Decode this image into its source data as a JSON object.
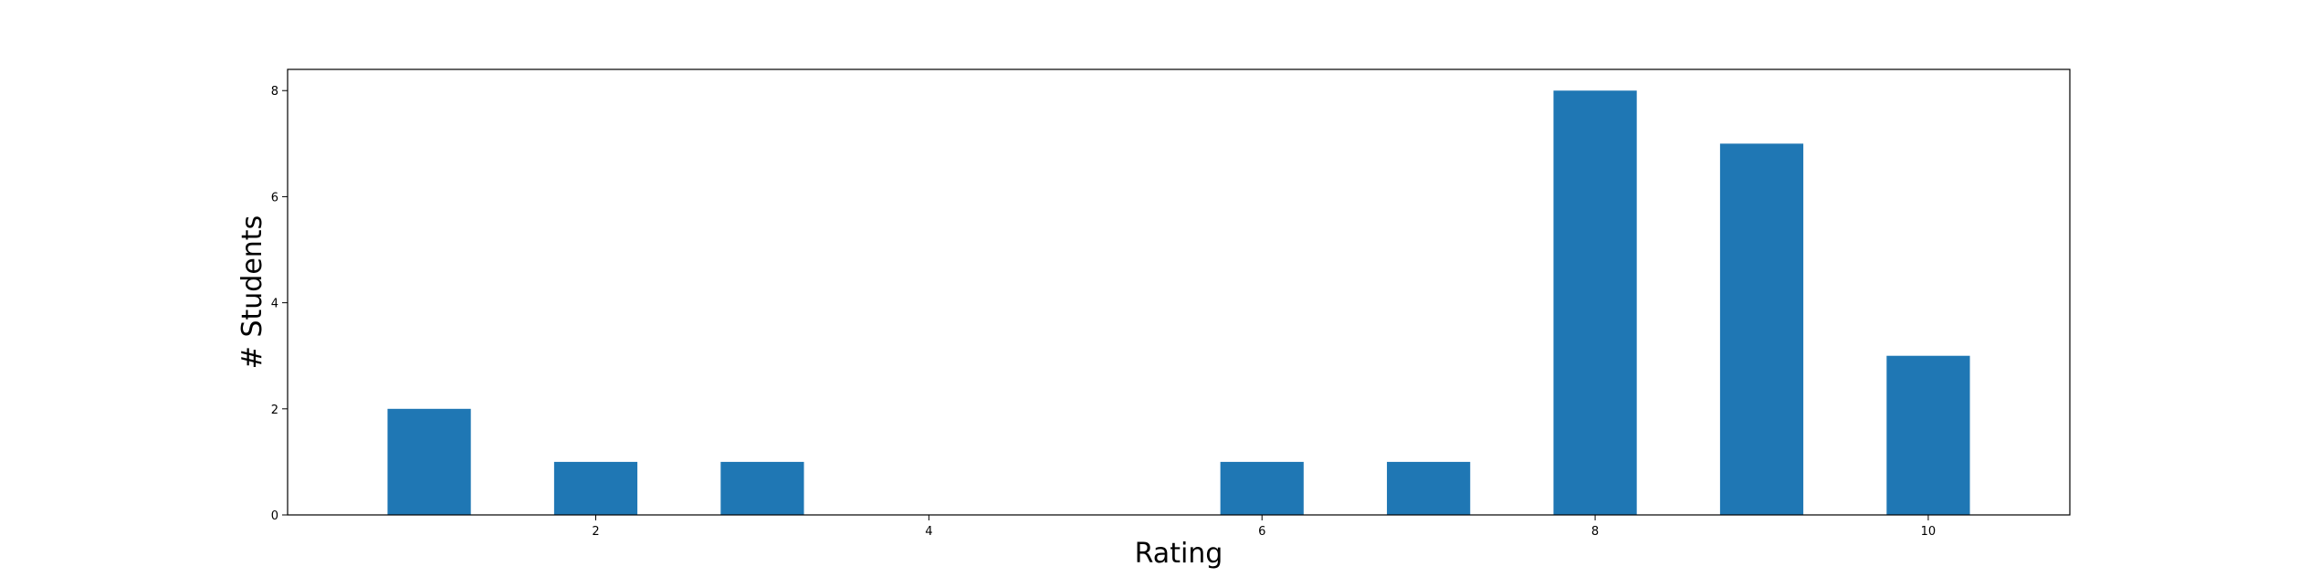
{
  "chart_data": {
    "type": "bar",
    "x": [
      1,
      2,
      3,
      6,
      7,
      8,
      9,
      10
    ],
    "values": [
      2,
      1,
      1,
      1,
      1,
      8,
      7,
      3
    ],
    "xlabel": "Rating",
    "ylabel": "# Students",
    "xlim": [
      0.15,
      10.85
    ],
    "ylim": [
      0,
      8.4
    ],
    "xticks": [
      2,
      4,
      6,
      8,
      10
    ],
    "yticks": [
      0,
      2,
      4,
      6,
      8
    ],
    "bar_width": 0.5,
    "grid": false,
    "colors": {
      "bar": "#1f77b4"
    }
  }
}
